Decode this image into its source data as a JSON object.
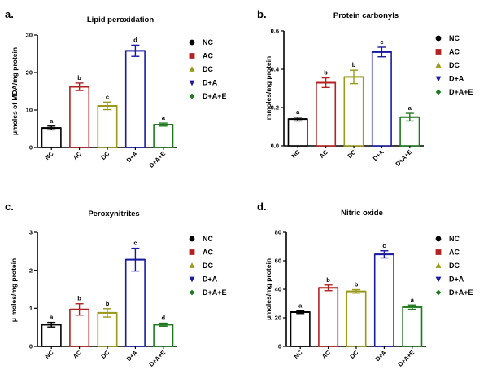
{
  "chart_data": [
    {
      "type": "bar",
      "panel": "a.",
      "title": "Lipid peroxidation",
      "ylabel": "μmoles of MDA/mg protein",
      "xlabel": "",
      "ylim": [
        0,
        30
      ],
      "yticks": [
        "0",
        "10",
        "20",
        "30"
      ],
      "categories": [
        "NC",
        "AC",
        "DC",
        "D+A",
        "D+A+E"
      ],
      "values": [
        5.2,
        16.2,
        11.1,
        25.8,
        6.1
      ],
      "errors": [
        0.5,
        1.0,
        1.0,
        1.5,
        0.4
      ],
      "significance": [
        "a",
        "b",
        "c",
        "d",
        "a"
      ],
      "legend": [
        "NC",
        "AC",
        "DC",
        "D+A",
        "D+A+E"
      ]
    },
    {
      "type": "bar",
      "panel": "b.",
      "title": "Protein carbonyls",
      "ylabel": "mmoles/mg protein",
      "xlabel": "",
      "ylim": [
        0,
        0.6
      ],
      "yticks": [
        "0.0",
        "0.2",
        "0.4",
        "0.6"
      ],
      "categories": [
        "NC",
        "AC",
        "DC",
        "D+A",
        "D+A+E"
      ],
      "values": [
        0.14,
        0.33,
        0.36,
        0.49,
        0.15
      ],
      "errors": [
        0.01,
        0.025,
        0.035,
        0.025,
        0.02
      ],
      "significance": [
        "a",
        "b",
        "b",
        "c",
        "a"
      ],
      "legend": [
        "NC",
        "AC",
        "DC",
        "D+A",
        "D+A+E"
      ]
    },
    {
      "type": "bar",
      "panel": "c.",
      "title": "Peroxynitrites",
      "ylabel": "μ moles/mg protein",
      "xlabel": "",
      "ylim": [
        0,
        3
      ],
      "yticks": [
        "0",
        "1",
        "2",
        "3"
      ],
      "categories": [
        "NC",
        "AC",
        "DC",
        "D+A",
        "D+A+E"
      ],
      "values": [
        0.57,
        0.97,
        0.88,
        2.28,
        0.57
      ],
      "errors": [
        0.06,
        0.15,
        0.11,
        0.3,
        0.04
      ],
      "significance": [
        "a",
        "b",
        "b",
        "c",
        "d"
      ],
      "legend": [
        "NC",
        "AC",
        "DC",
        "D+A",
        "D+A+E"
      ]
    },
    {
      "type": "bar",
      "panel": "d.",
      "title": "Nitric oxide",
      "ylabel": "μmoles/mg protein",
      "xlabel": "",
      "ylim": [
        0,
        80
      ],
      "yticks": [
        "0",
        "20",
        "40",
        "60",
        "80"
      ],
      "categories": [
        "NC",
        "AC",
        "DC",
        "D+A",
        "D+A+E"
      ],
      "values": [
        24,
        41,
        38.5,
        64.5,
        27.5
      ],
      "errors": [
        1.0,
        2.0,
        1.2,
        2.5,
        1.5
      ],
      "significance": [
        "a",
        "b",
        "b",
        "c",
        "a"
      ],
      "legend": [
        "NC",
        "AC",
        "DC",
        "D+A",
        "D+A+E"
      ]
    }
  ],
  "colors": [
    "#000000",
    "#b22222",
    "#9a9a1a",
    "#1a1aa0",
    "#1f7a1f"
  ],
  "legend_markers": [
    "circle",
    "square",
    "triangle-up",
    "triangle-down",
    "diamond"
  ]
}
